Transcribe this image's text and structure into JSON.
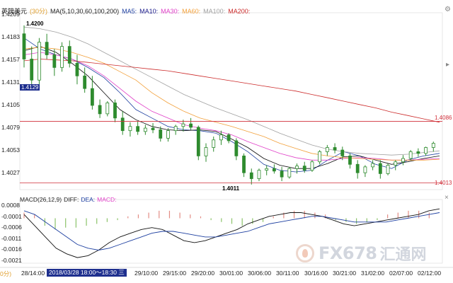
{
  "header": {
    "symbol": "英镑美元",
    "period": "(30分)",
    "ma_params": "MA(5,10,30,60,100,200)",
    "ma5": "MA5:",
    "ma10": "MA10:",
    "ma30": "MA30:",
    "ma60": "MA60:",
    "ma100": "MA100:",
    "ma200": "MA200:"
  },
  "macd_header": {
    "params": "MACD(26,12,9)",
    "diff": "DIFF:",
    "dea": "DEA:",
    "macd": "MACD:"
  },
  "colors": {
    "ma5": "#1d3fa0",
    "ma10": "#0a0a0a",
    "ma30": "#e040c8",
    "ma60": "#f2a03a",
    "ma100": "#a0a0a0",
    "ma200": "#cc2b2b",
    "up": "#2e8b2e",
    "down": "#2e8b2e",
    "hline": "#d12f3a",
    "macd_pos": "#e38c84",
    "macd_neg": "#8cc36a"
  },
  "price_axis": [
    "1.4209",
    "1.4183",
    "1.4157",
    "1.4131",
    "1.4105",
    "1.4079",
    "1.4053",
    "1.4027"
  ],
  "macd_axis": [
    "0.0008",
    "-0.0001",
    "-0.0006",
    "-0.0011",
    "-0.0016",
    "-0.0021"
  ],
  "x_axis": [
    "28/14:00",
    "29/10:00",
    "29/15:00",
    "29/20:00",
    "30/01:00",
    "30/06:00",
    "30/11:00",
    "30/16:00",
    "30/21:00",
    "31/02:00",
    "02/07:00",
    "02/12:00"
  ],
  "annotations": {
    "high_label": "1.4200",
    "low_label": "1.4011",
    "cursor_price": "1.4129",
    "upper_line": "1.4086",
    "lower_line": "1.4013",
    "left_truncated": "0分)",
    "cursor_time": "2018/03/28 18:00～18:30 三"
  },
  "watermark": {
    "latin": "FX678",
    "chinese": "汇通网"
  },
  "chart_data": {
    "type": "candlestick",
    "ylim": [
      1.4005,
      1.4215
    ],
    "upper_hline": 1.4086,
    "lower_hline": 1.4013,
    "candles": [
      [
        1.419,
        1.42,
        1.415,
        1.416
      ],
      [
        1.416,
        1.4175,
        1.413,
        1.4135
      ],
      [
        1.4135,
        1.4185,
        1.413,
        1.418
      ],
      [
        1.418,
        1.419,
        1.416,
        1.4165
      ],
      [
        1.4165,
        1.4172,
        1.414,
        1.415
      ],
      [
        1.415,
        1.418,
        1.4145,
        1.4175
      ],
      [
        1.4175,
        1.4182,
        1.415,
        1.4155
      ],
      [
        1.4155,
        1.4165,
        1.413,
        1.414
      ],
      [
        1.414,
        1.415,
        1.412,
        1.4125
      ],
      [
        1.4125,
        1.414,
        1.41,
        1.4105
      ],
      [
        1.4105,
        1.4112,
        1.409,
        1.4095
      ],
      [
        1.4095,
        1.411,
        1.4092,
        1.4108
      ],
      [
        1.4108,
        1.4112,
        1.4085,
        1.409
      ],
      [
        1.409,
        1.4098,
        1.407,
        1.4075
      ],
      [
        1.4075,
        1.4085,
        1.4068,
        1.408
      ],
      [
        1.408,
        1.4086,
        1.407,
        1.4074
      ],
      [
        1.4074,
        1.4082,
        1.407,
        1.4078
      ],
      [
        1.4078,
        1.4084,
        1.4072,
        1.4076
      ],
      [
        1.4076,
        1.408,
        1.4062,
        1.4066
      ],
      [
        1.4066,
        1.4078,
        1.4062,
        1.4075
      ],
      [
        1.4075,
        1.4082,
        1.407,
        1.408
      ],
      [
        1.408,
        1.4088,
        1.4074,
        1.4083
      ],
      [
        1.4083,
        1.409,
        1.4076,
        1.4079
      ],
      [
        1.4079,
        1.4081,
        1.404,
        1.4045
      ],
      [
        1.4045,
        1.406,
        1.4038,
        1.4055
      ],
      [
        1.4055,
        1.4068,
        1.405,
        1.4064
      ],
      [
        1.4064,
        1.4075,
        1.4058,
        1.407
      ],
      [
        1.407,
        1.4072,
        1.406,
        1.4063
      ],
      [
        1.4063,
        1.4066,
        1.404,
        1.4045
      ],
      [
        1.4045,
        1.4048,
        1.402,
        1.4025
      ],
      [
        1.4025,
        1.403,
        1.4011,
        1.4018
      ],
      [
        1.4018,
        1.403,
        1.4015,
        1.4028
      ],
      [
        1.4028,
        1.4034,
        1.4022,
        1.403
      ],
      [
        1.403,
        1.4035,
        1.4024,
        1.4027
      ],
      [
        1.4027,
        1.4032,
        1.4015,
        1.402
      ],
      [
        1.402,
        1.4032,
        1.4018,
        1.403
      ],
      [
        1.403,
        1.4036,
        1.4024,
        1.4033
      ],
      [
        1.4033,
        1.4038,
        1.4025,
        1.4028
      ],
      [
        1.4028,
        1.404,
        1.4026,
        1.4038
      ],
      [
        1.4038,
        1.4052,
        1.4035,
        1.405
      ],
      [
        1.405,
        1.4058,
        1.4045,
        1.4055
      ],
      [
        1.4055,
        1.406,
        1.4048,
        1.4052
      ],
      [
        1.4052,
        1.4056,
        1.404,
        1.4045
      ],
      [
        1.4045,
        1.4048,
        1.403,
        1.4035
      ],
      [
        1.4035,
        1.404,
        1.4018,
        1.4025
      ],
      [
        1.4025,
        1.4034,
        1.402,
        1.4032
      ],
      [
        1.4032,
        1.404,
        1.4028,
        1.4036
      ],
      [
        1.4036,
        1.404,
        1.4018,
        1.4024
      ],
      [
        1.4024,
        1.4036,
        1.4022,
        1.4034
      ],
      [
        1.4034,
        1.404,
        1.4028,
        1.4038
      ],
      [
        1.4038,
        1.4046,
        1.4034,
        1.4042
      ],
      [
        1.4042,
        1.4052,
        1.404,
        1.405
      ],
      [
        1.405,
        1.4054,
        1.4044,
        1.4048
      ],
      [
        1.4048,
        1.4056,
        1.4045,
        1.4055
      ],
      [
        1.4055,
        1.4062,
        1.405,
        1.406
      ]
    ],
    "series": [
      {
        "name": "MA5",
        "values": [
          1.4185,
          1.4172,
          1.4165,
          1.416,
          1.415,
          1.4138,
          1.412,
          1.41,
          1.409,
          1.408,
          1.4076,
          1.4075,
          1.4072,
          1.4062,
          1.405,
          1.4035,
          1.4028,
          1.4026,
          1.4028,
          1.404,
          1.405,
          1.4045,
          1.4035,
          1.403,
          1.404,
          1.4045,
          1.4048
        ]
      },
      {
        "name": "MA10",
        "values": [
          1.417,
          1.4175,
          1.4168,
          1.4155,
          1.414,
          1.412,
          1.41,
          1.4088,
          1.408,
          1.4076,
          1.4075,
          1.4076,
          1.4074,
          1.4065,
          1.4055,
          1.4042,
          1.4034,
          1.403,
          1.403,
          1.4036,
          1.4044,
          1.4045,
          1.404,
          1.4035,
          1.4038,
          1.4042,
          1.4045
        ]
      },
      {
        "name": "MA30",
        "values": [
          1.4165,
          1.4168,
          1.4165,
          1.416,
          1.4152,
          1.414,
          1.4125,
          1.411,
          1.4098,
          1.409,
          1.4082,
          1.4078,
          1.4075,
          1.407,
          1.4062,
          1.4055,
          1.4048,
          1.4043,
          1.404,
          1.404,
          1.4042,
          1.4043,
          1.4042,
          1.404,
          1.404,
          1.4041,
          1.4042
        ]
      },
      {
        "name": "MA60",
        "values": [
          1.4172,
          1.4174,
          1.4172,
          1.4168,
          1.4162,
          1.4155,
          1.4145,
          1.4135,
          1.412,
          1.4108,
          1.4098,
          1.409,
          1.4085,
          1.408,
          1.4074,
          1.4068,
          1.406,
          1.4054,
          1.4048,
          1.4045,
          1.4043,
          1.4042,
          1.4041,
          1.404,
          1.404,
          1.404,
          1.4041
        ]
      },
      {
        "name": "MA100",
        "values": [
          1.4198,
          1.4196,
          1.4192,
          1.4186,
          1.4178,
          1.4168,
          1.4158,
          1.4148,
          1.4138,
          1.4128,
          1.4118,
          1.411,
          1.4102,
          1.4095,
          1.4088,
          1.408,
          1.4072,
          1.4065,
          1.4058,
          1.4053,
          1.405,
          1.4048,
          1.4047,
          1.4046,
          1.4047,
          1.4049,
          1.4051
        ]
      },
      {
        "name": "MA200",
        "values": [
          1.4158,
          1.416,
          1.4159,
          1.4158,
          1.4156,
          1.4154,
          1.4152,
          1.415,
          1.4148,
          1.4146,
          1.4143,
          1.414,
          1.4137,
          1.4134,
          1.4131,
          1.4128,
          1.4125,
          1.4122,
          1.4118,
          1.4114,
          1.411,
          1.4106,
          1.4102,
          1.4097,
          1.4093,
          1.4089,
          1.4085
        ]
      }
    ],
    "macd": {
      "ylim": [
        -0.0024,
        0.001
      ],
      "diff": [
        0.0002,
        -0.0004,
        -0.001,
        -0.0016,
        -0.0019,
        -0.0021,
        -0.002,
        -0.0017,
        -0.0013,
        -0.001,
        -0.0008,
        -0.0006,
        -0.0005,
        -0.0006,
        -0.0009,
        -0.0012,
        -0.0013,
        -0.0012,
        -0.001,
        -0.0008,
        -0.0006,
        -0.0003,
        -0.0001,
        0.0001,
        0.0002,
        0.0003,
        0.0003,
        0.0002,
        0.0001,
        -0.0001,
        -0.0003,
        -0.0004,
        -0.0003,
        -0.0002,
        -0.0001,
        0.0,
        0.0001,
        0.0002,
        0.0004,
        0.0005
      ],
      "dea": [
        0.0004,
        0.0002,
        -0.0002,
        -0.0006,
        -0.001,
        -0.0014,
        -0.0016,
        -0.0017,
        -0.0016,
        -0.0014,
        -0.0012,
        -0.001,
        -0.0008,
        -0.0007,
        -0.0007,
        -0.0008,
        -0.0009,
        -0.001,
        -0.001,
        -0.0009,
        -0.0008,
        -0.0007,
        -0.0005,
        -0.0003,
        -0.0002,
        -0.0001,
        0.0,
        0.0001,
        0.0001,
        0.0,
        -0.0001,
        -0.0002,
        -0.0002,
        -0.0002,
        -0.0002,
        -0.0001,
        0.0,
        0.0001,
        0.0002,
        0.0003
      ],
      "hist": [
        0.0003,
        0.0002,
        -0.0004,
        -0.0006,
        -0.0005,
        -0.0005,
        -0.0004,
        -0.0003,
        -0.0002,
        -0.0001,
        0.0001,
        0.0002,
        0.0003,
        0.0004,
        0.0004,
        0.0003,
        0.0002,
        0.0001,
        -0.0001,
        -0.0002,
        -0.0003,
        -0.0004,
        -0.0003,
        -0.0002,
        0.0001,
        0.0003,
        0.0004,
        0.0004,
        0.0003,
        0.0002,
        -0.0001,
        -0.0002,
        -0.0003,
        -0.0002,
        -0.0001,
        0.0002,
        0.0003,
        0.0004,
        0.0004,
        0.0003
      ]
    }
  }
}
